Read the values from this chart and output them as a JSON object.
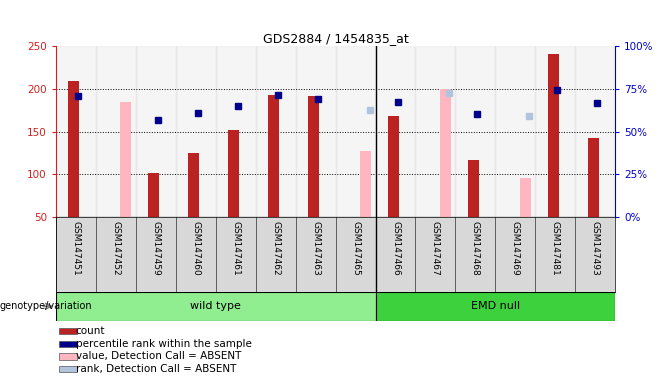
{
  "title": "GDS2884 / 1454835_at",
  "samples": [
    "GSM147451",
    "GSM147452",
    "GSM147459",
    "GSM147460",
    "GSM147461",
    "GSM147462",
    "GSM147463",
    "GSM147465",
    "GSM147466",
    "GSM147467",
    "GSM147468",
    "GSM147469",
    "GSM147481",
    "GSM147493"
  ],
  "count": [
    209,
    null,
    102,
    125,
    152,
    193,
    191,
    null,
    168,
    null,
    117,
    null,
    241,
    142
  ],
  "percentile_rank": [
    191,
    null,
    164,
    172,
    180,
    193,
    188,
    null,
    185,
    null,
    171,
    null,
    199,
    183
  ],
  "value_absent": [
    null,
    185,
    null,
    null,
    null,
    null,
    null,
    127,
    null,
    200,
    null,
    96,
    null,
    null
  ],
  "rank_absent": [
    null,
    null,
    null,
    null,
    null,
    null,
    null,
    175,
    null,
    195,
    null,
    168,
    null,
    null
  ],
  "wild_type_count": 8,
  "emd_null_count": 6,
  "ylim_left": [
    50,
    250
  ],
  "ylim_right": [
    0,
    100
  ],
  "yticks_left": [
    50,
    100,
    150,
    200,
    250
  ],
  "yticks_right": [
    0,
    25,
    50,
    75,
    100
  ],
  "color_count": "#bb2222",
  "color_percentile": "#00008b",
  "color_value_absent": "#ffb6c1",
  "color_rank_absent": "#b0c4de",
  "color_wt_bg": "#90ee90",
  "color_emd_bg": "#3dd13d",
  "color_tick_left": "#cc2222",
  "color_tick_right": "#0000cc",
  "gridline_color": "black",
  "bar_width": 0.5,
  "marker_size": 5,
  "col_bg_color": "#d8d8d8"
}
